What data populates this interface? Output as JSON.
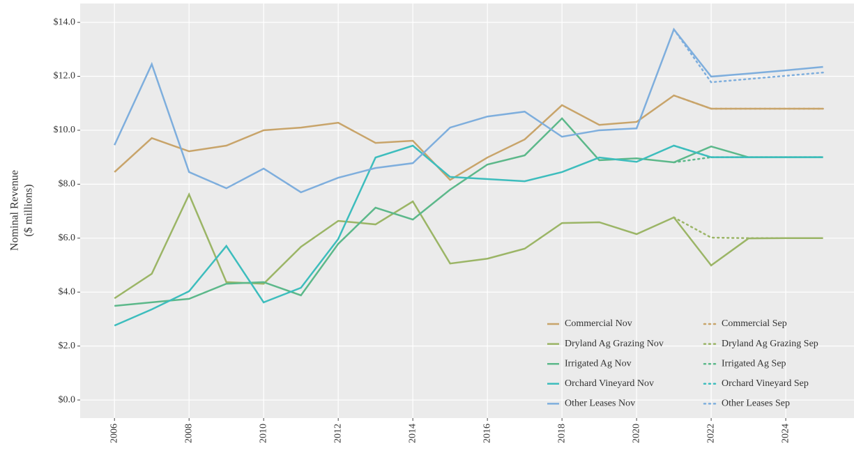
{
  "chart_data": {
    "type": "line",
    "y_label": [
      "Nominal Revenue",
      "($ millions)"
    ],
    "x": [
      2006,
      2007,
      2008,
      2009,
      2010,
      2011,
      2012,
      2013,
      2014,
      2015,
      2016,
      2017,
      2018,
      2019,
      2020,
      2021,
      2022,
      2023,
      2024,
      2025
    ],
    "xlim": [
      2005.08,
      2025.83
    ],
    "xticks": [
      2006,
      2008,
      2010,
      2012,
      2014,
      2016,
      2018,
      2020,
      2022,
      2024
    ],
    "ylim": [
      -0.67,
      14.7
    ],
    "yticks": [
      {
        "value": 0,
        "label": "$0.0"
      },
      {
        "value": 2,
        "label": "$2.0"
      },
      {
        "value": 4,
        "label": "$4.0"
      },
      {
        "value": 6,
        "label": "$6.0"
      },
      {
        "value": 8,
        "label": "$8.0"
      },
      {
        "value": 10,
        "label": "$10.0"
      },
      {
        "value": 12,
        "label": "$12.0"
      },
      {
        "value": 14,
        "label": "$14.0"
      }
    ],
    "grid": true,
    "legend_position": "bottom-right",
    "series": [
      {
        "name": "Commercial Nov",
        "color": "#c8a46a",
        "linestyle": "solid",
        "values": [
          8.45,
          9.71,
          9.22,
          9.43,
          10.0,
          10.1,
          10.28,
          9.53,
          9.61,
          8.16,
          8.99,
          9.66,
          10.93,
          10.2,
          10.31,
          11.29,
          10.8,
          10.8,
          10.8,
          10.8
        ]
      },
      {
        "name": "Dryland Ag Grazing Nov",
        "color": "#9bb566",
        "linestyle": "solid",
        "values": [
          3.77,
          4.68,
          7.62,
          4.37,
          4.31,
          5.68,
          6.64,
          6.51,
          7.36,
          5.06,
          5.24,
          5.61,
          6.56,
          6.59,
          6.15,
          6.77,
          4.99,
          5.99,
          6.0,
          6.0
        ]
      },
      {
        "name": "Irrigated Ag Nov",
        "color": "#5cb88a",
        "linestyle": "solid",
        "values": [
          3.49,
          3.62,
          3.75,
          4.31,
          4.37,
          3.88,
          5.79,
          7.13,
          6.69,
          7.8,
          8.73,
          9.07,
          10.44,
          8.89,
          8.96,
          8.81,
          9.4,
          9.0,
          9.0,
          9.0
        ]
      },
      {
        "name": "Orchard Vineyard Nov",
        "color": "#3dbdbd",
        "linestyle": "solid",
        "values": [
          2.76,
          3.36,
          4.03,
          5.71,
          3.62,
          4.16,
          5.97,
          8.99,
          9.43,
          8.27,
          8.19,
          8.11,
          8.45,
          8.99,
          8.83,
          9.43,
          9.0,
          9.0,
          9.0,
          9.0
        ]
      },
      {
        "name": "Other Leases Nov",
        "color": "#7eaedd",
        "linestyle": "solid",
        "values": [
          9.45,
          12.45,
          8.45,
          7.85,
          8.58,
          7.7,
          8.24,
          8.6,
          8.78,
          10.1,
          10.51,
          10.69,
          9.76,
          10.0,
          10.07,
          13.74,
          11.99,
          12.1,
          12.22,
          12.35
        ]
      },
      {
        "name": "Commercial Sep",
        "color": "#c8a46a",
        "linestyle": "dotted",
        "values": [
          null,
          null,
          null,
          null,
          null,
          null,
          null,
          null,
          null,
          null,
          null,
          null,
          null,
          null,
          null,
          11.29,
          10.8,
          10.8,
          10.8,
          10.8
        ]
      },
      {
        "name": "Dryland Ag Grazing Sep",
        "color": "#9bb566",
        "linestyle": "dotted",
        "values": [
          null,
          null,
          null,
          null,
          null,
          null,
          null,
          null,
          null,
          null,
          null,
          null,
          null,
          null,
          null,
          6.77,
          6.02,
          6.0,
          6.0,
          6.0
        ]
      },
      {
        "name": "Irrigated Ag Sep",
        "color": "#5cb88a",
        "linestyle": "dotted",
        "values": [
          null,
          null,
          null,
          null,
          null,
          null,
          null,
          null,
          null,
          null,
          null,
          null,
          null,
          null,
          null,
          8.81,
          9.0,
          9.0,
          9.0,
          9.0
        ]
      },
      {
        "name": "Orchard Vineyard Sep",
        "color": "#3dbdbd",
        "linestyle": "dotted",
        "values": [
          null,
          null,
          null,
          null,
          null,
          null,
          null,
          null,
          null,
          null,
          null,
          null,
          null,
          null,
          null,
          9.43,
          9.0,
          9.0,
          9.0,
          9.0
        ]
      },
      {
        "name": "Other Leases Sep",
        "color": "#7eaedd",
        "linestyle": "dotted",
        "values": [
          null,
          null,
          null,
          null,
          null,
          null,
          null,
          null,
          null,
          null,
          null,
          null,
          null,
          null,
          null,
          13.74,
          11.78,
          11.9,
          12.02,
          12.14
        ]
      }
    ]
  }
}
